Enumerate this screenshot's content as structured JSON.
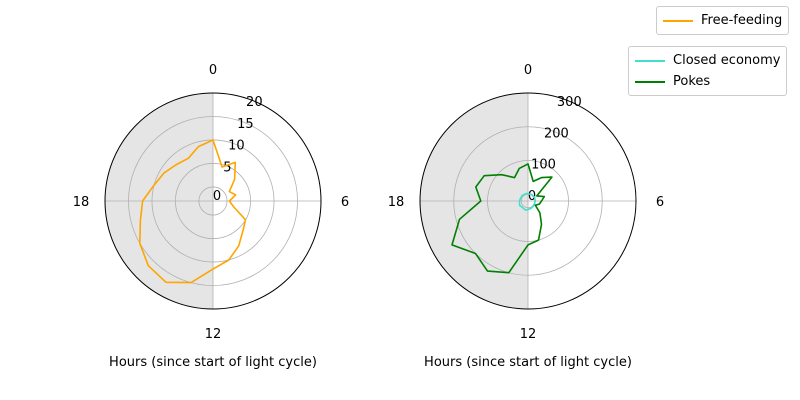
{
  "chart_data": [
    {
      "type": "polar-line",
      "xlabel": "Hours (since start of light cycle)",
      "theta_ticks": [
        "0",
        "6",
        "12",
        "18"
      ],
      "r_ticks": [
        "0",
        "5",
        "10",
        "15",
        "20"
      ],
      "rlim": [
        -3,
        20
      ],
      "dark_phase_hours": [
        12,
        24
      ],
      "series": [
        {
          "name": "Free-feeding",
          "color": "#ffa500",
          "hours": [
            0,
            1,
            2,
            3,
            4,
            5,
            6,
            7,
            8,
            9,
            10,
            11,
            12,
            13,
            14,
            15,
            16,
            17,
            18,
            19,
            20,
            21,
            22,
            23
          ],
          "values": [
            10,
            4.5,
            6.5,
            3.5,
            1,
            2,
            0.5,
            1.5,
            5,
            6,
            8,
            10,
            11.5,
            15,
            17,
            16.5,
            15,
            13,
            12,
            10,
            9,
            8,
            7.5,
            9
          ]
        }
      ]
    },
    {
      "type": "polar-line",
      "xlabel": "Hours (since start of light cycle)",
      "theta_ticks": [
        "0",
        "6",
        "12",
        "18"
      ],
      "r_ticks": [
        "0",
        "100",
        "200",
        "300"
      ],
      "rlim": [
        -20,
        300
      ],
      "dark_phase_hours": [
        12,
        24
      ],
      "series": [
        {
          "name": "Closed economy",
          "color": "#40e0d0",
          "hours": [
            0,
            1,
            2,
            3,
            4,
            5,
            6,
            7,
            8,
            9,
            10,
            11,
            12,
            13,
            14,
            15,
            16,
            17,
            18,
            19,
            20,
            21,
            22,
            23
          ],
          "values": [
            2,
            1,
            2,
            1,
            3,
            1,
            2,
            1,
            1,
            2,
            3,
            4,
            5,
            8,
            6,
            5,
            8,
            6,
            5,
            4,
            3,
            4,
            2,
            3
          ]
        },
        {
          "name": "Pokes",
          "color": "#008000",
          "hours": [
            0,
            1,
            2,
            3,
            4,
            5,
            6,
            7,
            8,
            9,
            10,
            11,
            12,
            13,
            14,
            15,
            16,
            17,
            18,
            19,
            20,
            21,
            22,
            23
          ],
          "values": [
            90,
            40,
            60,
            80,
            10,
            30,
            20,
            15,
            5,
            30,
            60,
            100,
            110,
            200,
            220,
            200,
            240,
            190,
            120,
            140,
            130,
            90,
            60,
            80
          ]
        }
      ]
    }
  ],
  "legend": {
    "top": [
      {
        "label": "Free-feeding",
        "color": "#ffa500"
      }
    ],
    "bottom": [
      {
        "label": "Closed economy",
        "color": "#40e0d0"
      },
      {
        "label": "Pokes",
        "color": "#008000"
      }
    ]
  }
}
